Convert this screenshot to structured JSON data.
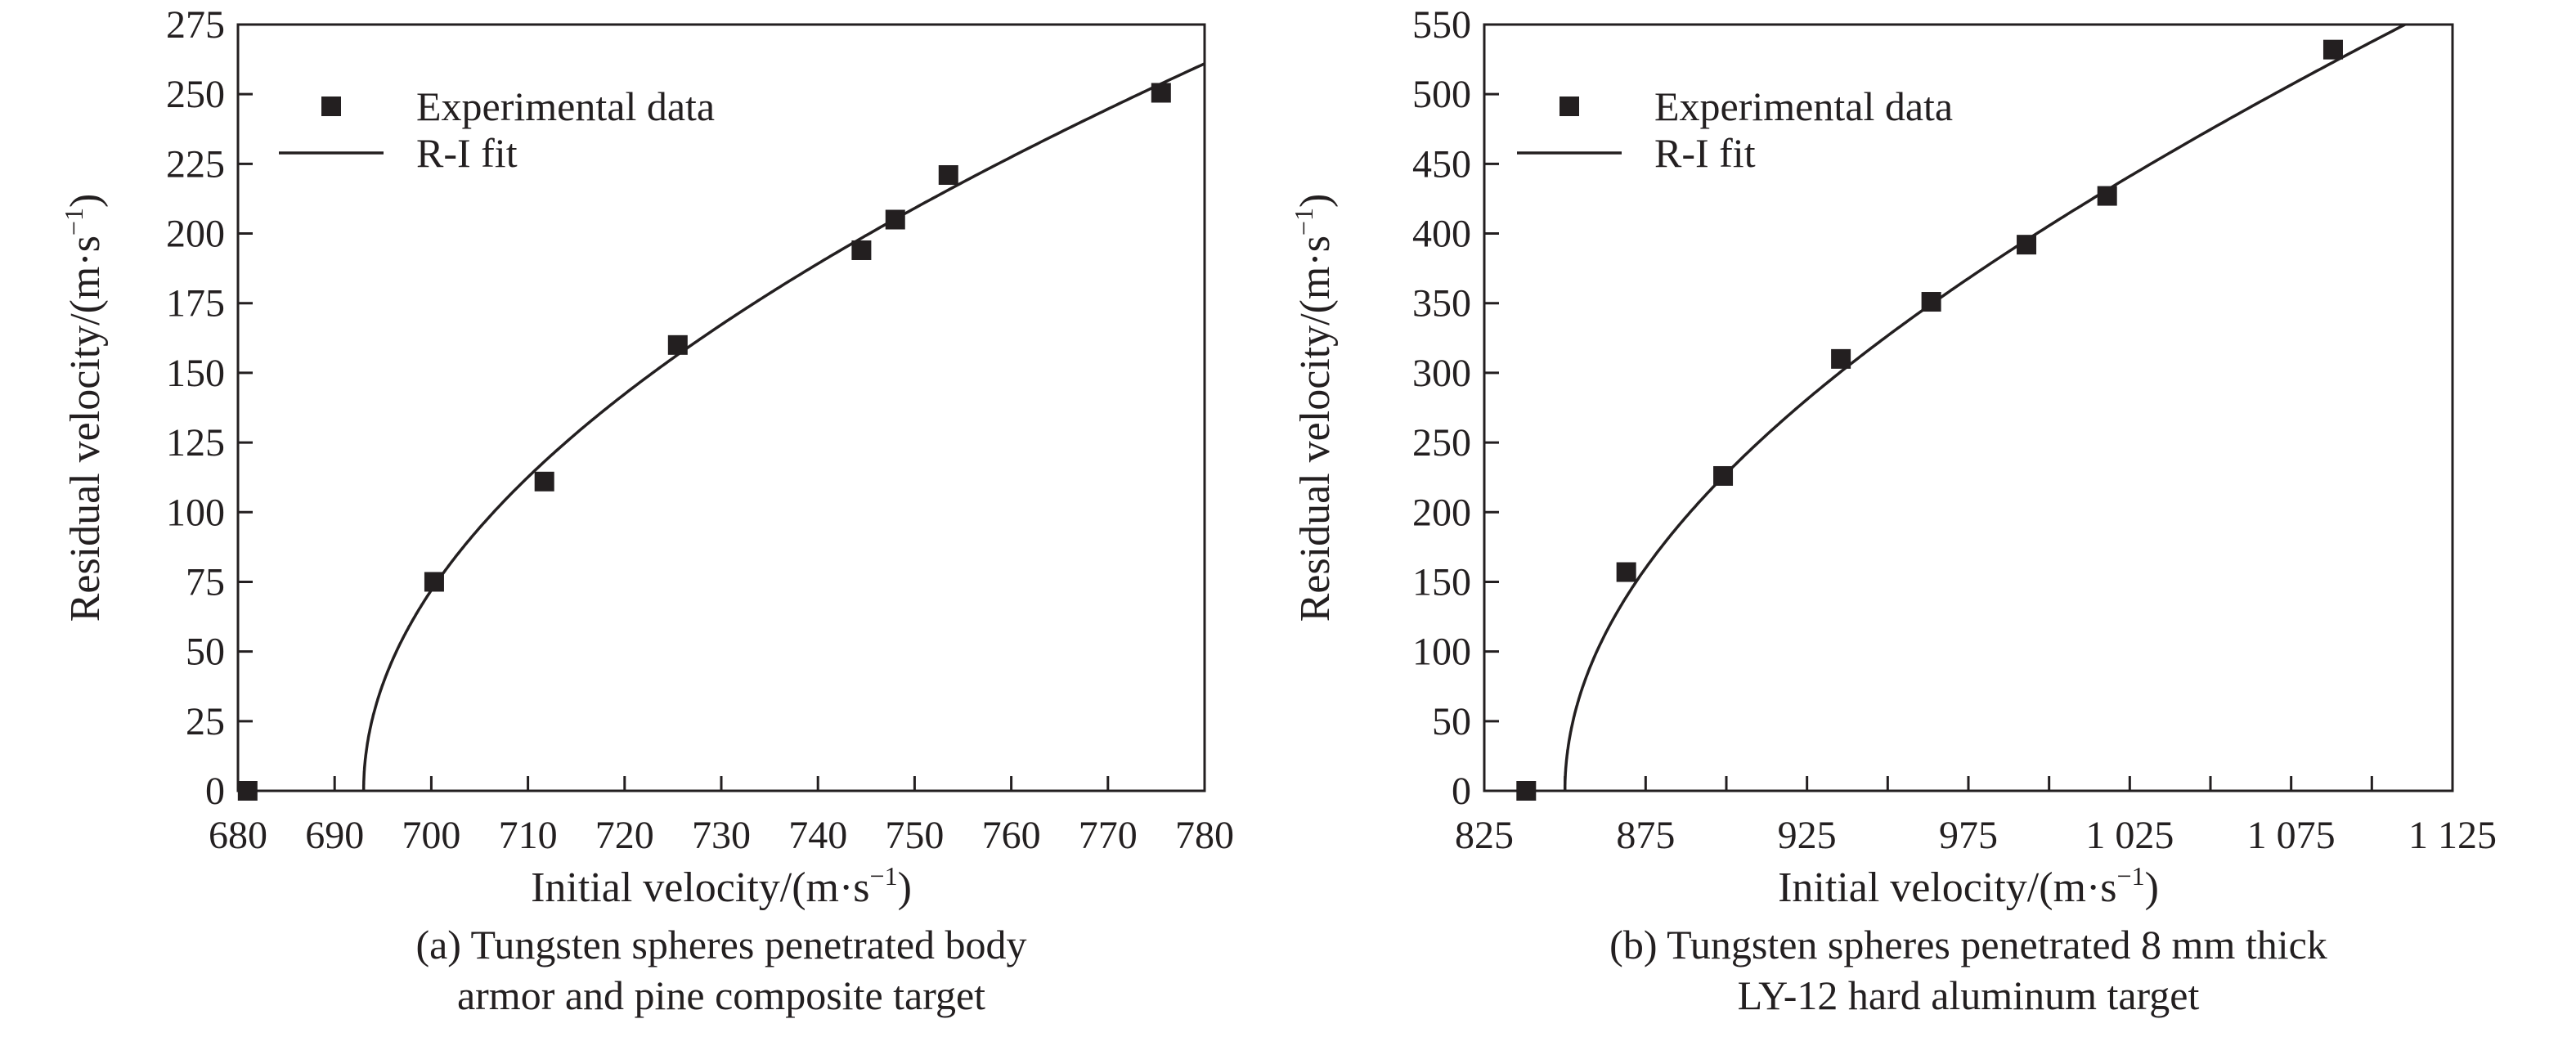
{
  "chart_data": [
    {
      "type": "scatter",
      "caption": [
        "(a) Tungsten spheres penetrated body",
        "armor and pine composite target"
      ],
      "xlabel": "Initial velocity/(m·s",
      "xlabel_sup": "−1",
      "xlabel_end": ")",
      "ylabel": "Residual velocity/(m·s",
      "ylabel_sup": "−1",
      "ylabel_end": ")",
      "xlim": [
        680,
        780
      ],
      "ylim": [
        0,
        275
      ],
      "x_ticks": [
        680,
        690,
        700,
        710,
        720,
        730,
        740,
        750,
        760,
        770,
        780
      ],
      "x_tick_labels": [
        "680",
        "690",
        "700",
        "710",
        "720",
        "730",
        "740",
        "750",
        "760",
        "770",
        "780"
      ],
      "y_ticks": [
        0,
        25,
        50,
        75,
        100,
        125,
        150,
        175,
        200,
        225,
        250,
        275
      ],
      "y_tick_labels": [
        "0",
        "25",
        "50",
        "75",
        "100",
        "125",
        "150",
        "175",
        "200",
        "225",
        "250",
        "275"
      ],
      "grid": false,
      "legend": {
        "placement": "top-left",
        "entries": [
          "Experimental data",
          "R-I fit"
        ]
      },
      "series": [
        {
          "name": "Experimental data",
          "marker": "square",
          "color": "#231f20",
          "x": [
            681,
            700.3,
            711.7,
            725.5,
            744.5,
            748,
            753.5,
            775.5
          ],
          "y": [
            0,
            75,
            111,
            160,
            194,
            205,
            221,
            250.5
          ]
        },
        {
          "name": "R-I fit",
          "line": true,
          "color": "#231f20",
          "ballistic_limit": 693,
          "a": 0.729,
          "p": 2
        }
      ]
    },
    {
      "type": "scatter",
      "caption": [
        "(b) Tungsten spheres penetrated 8 mm thick",
        "LY-12 hard aluminum target"
      ],
      "xlabel": "Initial velocity/(m·s",
      "xlabel_sup": "−1",
      "xlabel_end": ")",
      "ylabel": "Residual velocity/(m·s",
      "ylabel_sup": "−1",
      "ylabel_end": ")",
      "xlim": [
        825,
        1125
      ],
      "ylim": [
        0,
        550
      ],
      "x_ticks": [
        825,
        850,
        875,
        900,
        925,
        950,
        975,
        1000,
        1025,
        1050,
        1075,
        1100,
        1125
      ],
      "x_tick_labels": [
        "825",
        "",
        "875",
        "",
        "925",
        "",
        "975",
        "",
        "1 025",
        "",
        "1 075",
        "",
        "1 125"
      ],
      "y_ticks": [
        0,
        50,
        100,
        150,
        200,
        250,
        300,
        350,
        400,
        450,
        500,
        550
      ],
      "y_tick_labels": [
        "0",
        "50",
        "100",
        "150",
        "200",
        "250",
        "300",
        "350",
        "400",
        "450",
        "500",
        "550"
      ],
      "grid": false,
      "legend": {
        "placement": "top-left",
        "entries": [
          "Experimental data",
          "R-I fit"
        ]
      },
      "series": [
        {
          "name": "Experimental data",
          "marker": "square",
          "color": "#231f20",
          "x": [
            838,
            869,
            899,
            935.5,
            963.5,
            993,
            1018,
            1088
          ],
          "y": [
            0,
            157,
            226,
            310,
            351,
            392,
            427,
            532
          ]
        },
        {
          "name": "R-I fit",
          "line": true,
          "color": "#231f20",
          "ballistic_limit": 850,
          "a": 0.77,
          "p": 2
        }
      ]
    }
  ]
}
